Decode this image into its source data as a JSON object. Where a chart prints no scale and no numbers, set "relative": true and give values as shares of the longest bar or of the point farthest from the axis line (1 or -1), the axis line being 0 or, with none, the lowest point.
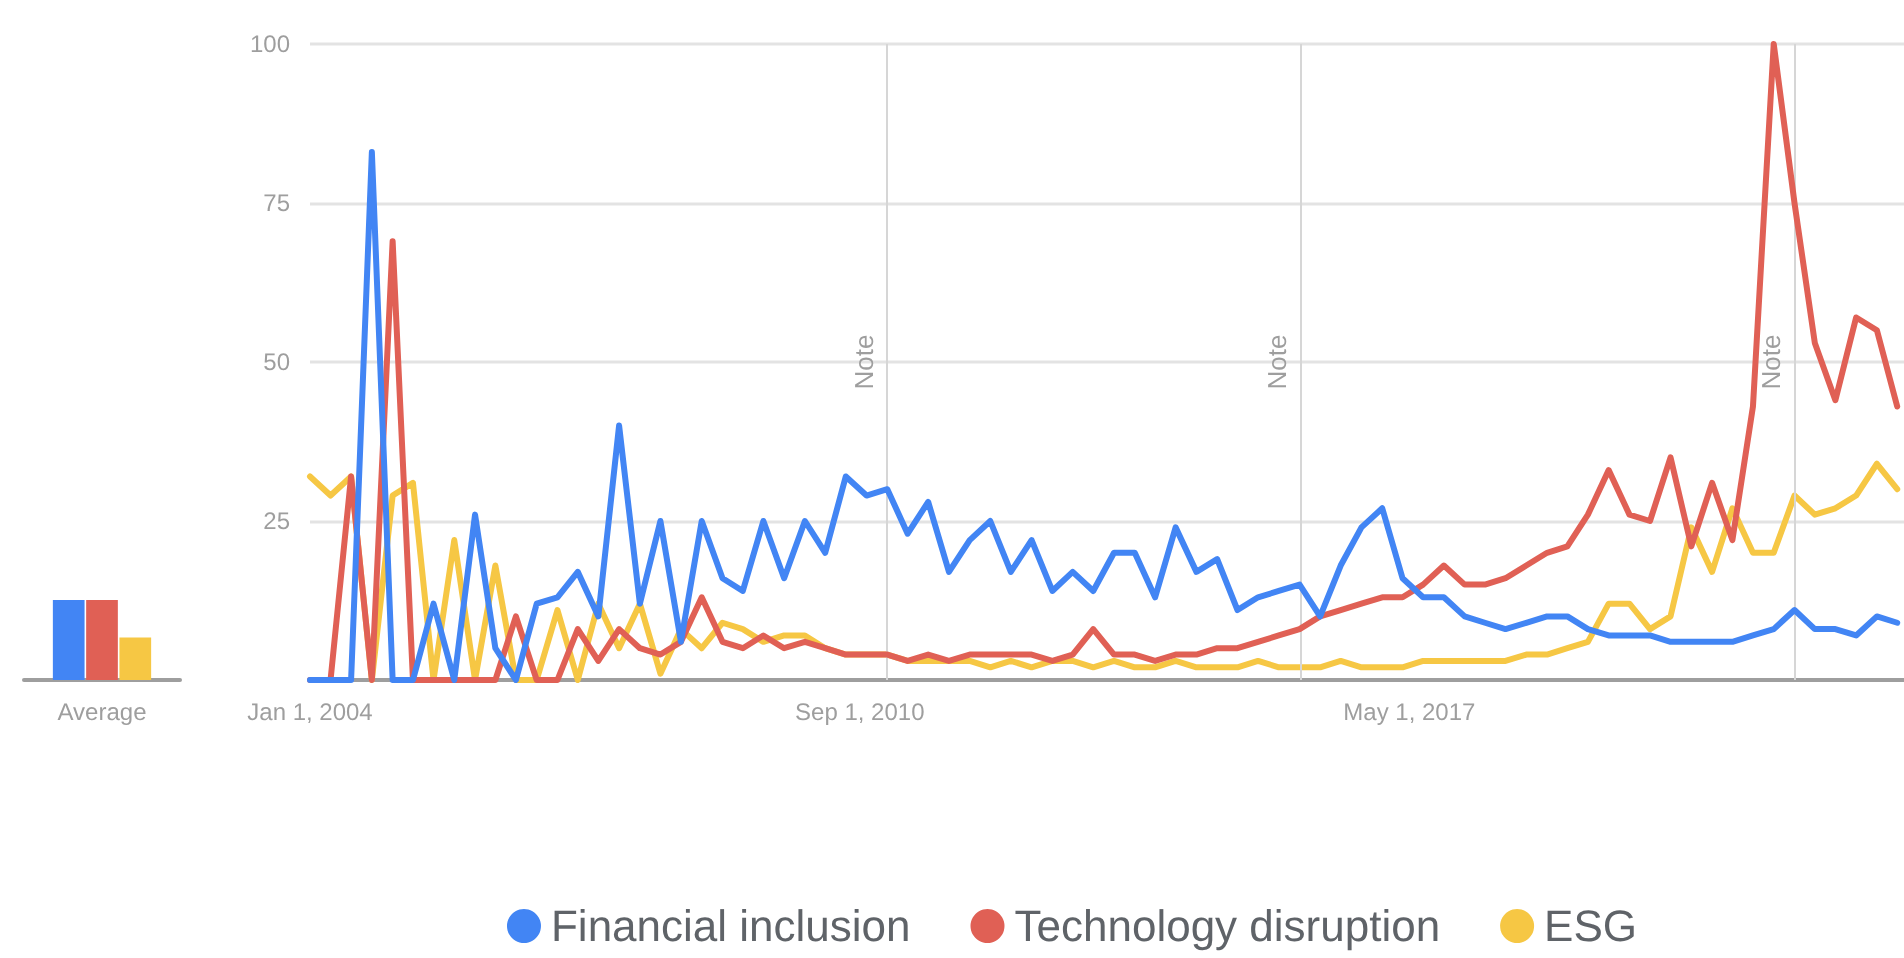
{
  "chart_data": [
    {
      "type": "bar",
      "categories": [
        "Average"
      ],
      "relative": true,
      "tick_labels": "x",
      "series": [
        {
          "color": "#4285f4",
          "values": [
            1
          ]
        },
        {
          "color": "#e06055",
          "values": [
            1
          ]
        },
        {
          "color": "#f6c744",
          "values": [
            0.53
          ]
        }
      ]
    },
    {
      "type": "line",
      "marker": "none",
      "line_style": "solid",
      "grid": "y",
      "legend": "bottom",
      "xlim": [
        "2004-01",
        "2023-05"
      ],
      "xticks": [
        {
          "value": "2004-01-01",
          "label": "Jan 1, 2004"
        },
        {
          "value": "2010-09-01",
          "label": "Sep 1, 2010"
        },
        {
          "value": "2017-05-01",
          "label": "May 1, 2017"
        }
      ],
      "ylim": [
        0,
        100
      ],
      "yticks": [
        25,
        50,
        75,
        100
      ],
      "x": [
        "2004-01",
        "2004-04",
        "2004-07",
        "2004-10",
        "2005-01",
        "2005-04",
        "2005-07",
        "2005-10",
        "2006-01",
        "2006-04",
        "2006-07",
        "2006-10",
        "2007-01",
        "2007-04",
        "2007-07",
        "2007-10",
        "2008-01",
        "2008-04",
        "2008-07",
        "2008-10",
        "2009-01",
        "2009-04",
        "2009-07",
        "2009-10",
        "2010-01",
        "2010-04",
        "2010-07",
        "2010-10",
        "2011-01",
        "2011-04",
        "2011-07",
        "2011-10",
        "2012-01",
        "2012-04",
        "2012-07",
        "2012-10",
        "2013-01",
        "2013-04",
        "2013-07",
        "2013-10",
        "2014-01",
        "2014-04",
        "2014-07",
        "2014-10",
        "2015-01",
        "2015-04",
        "2015-07",
        "2015-10",
        "2016-01",
        "2016-04",
        "2016-07",
        "2016-10",
        "2017-01",
        "2017-04",
        "2017-07",
        "2017-10",
        "2018-01",
        "2018-04",
        "2018-07",
        "2018-10",
        "2019-01",
        "2019-04",
        "2019-07",
        "2019-10",
        "2020-01",
        "2020-04",
        "2020-07",
        "2020-10",
        "2021-01",
        "2021-04",
        "2021-07",
        "2021-10",
        "2022-01",
        "2022-04",
        "2022-07",
        "2022-10",
        "2023-01",
        "2023-04"
      ],
      "series": [
        {
          "name": "Financial inclusion",
          "color": "#4285f4",
          "values": [
            0,
            0,
            0,
            83,
            0,
            0,
            12,
            0,
            26,
            5,
            0,
            12,
            13,
            17,
            10,
            40,
            12,
            25,
            6,
            25,
            16,
            14,
            25,
            16,
            25,
            20,
            32,
            29,
            30,
            23,
            28,
            17,
            22,
            25,
            17,
            22,
            14,
            17,
            14,
            20,
            20,
            13,
            24,
            17,
            19,
            11,
            13,
            14,
            15,
            10,
            18,
            24,
            27,
            16,
            13,
            13,
            10,
            9,
            8,
            9,
            10,
            10,
            8,
            7,
            7,
            7,
            6,
            6,
            6,
            6,
            7,
            8,
            11,
            8,
            8,
            7,
            10,
            9
          ]
        },
        {
          "name": "Technology disruption",
          "color": "#e06055",
          "values": [
            0,
            0,
            32,
            0,
            69,
            0,
            0,
            0,
            0,
            0,
            10,
            0,
            0,
            8,
            3,
            8,
            5,
            4,
            6,
            13,
            6,
            5,
            7,
            5,
            6,
            5,
            4,
            4,
            4,
            3,
            4,
            3,
            4,
            4,
            4,
            4,
            3,
            4,
            8,
            4,
            4,
            3,
            4,
            4,
            5,
            5,
            6,
            7,
            8,
            10,
            11,
            12,
            13,
            13,
            15,
            18,
            15,
            15,
            16,
            18,
            20,
            21,
            26,
            33,
            26,
            25,
            35,
            21,
            31,
            22,
            43,
            100,
            75,
            53,
            44,
            57,
            55,
            43
          ]
        },
        {
          "name": "ESG",
          "color": "#f6c744",
          "values": [
            32,
            29,
            32,
            0,
            29,
            31,
            0,
            22,
            0,
            18,
            0,
            0,
            11,
            0,
            12,
            5,
            12,
            1,
            8,
            5,
            9,
            8,
            6,
            7,
            7,
            5,
            4,
            4,
            4,
            3,
            3,
            3,
            3,
            2,
            3,
            2,
            3,
            3,
            2,
            3,
            2,
            2,
            3,
            2,
            2,
            2,
            3,
            2,
            2,
            2,
            3,
            2,
            2,
            2,
            3,
            3,
            3,
            3,
            3,
            4,
            4,
            5,
            6,
            12,
            12,
            8,
            10,
            24,
            17,
            27,
            20,
            20,
            29,
            26,
            27,
            29,
            34,
            30
          ]
        }
      ],
      "ref_lines": [
        {
          "axis": "x",
          "value": "2011-01",
          "label": "Note"
        },
        {
          "axis": "x",
          "value": "2016-01",
          "label": "Note"
        },
        {
          "axis": "x",
          "value": "2022-01",
          "label": "Note"
        }
      ]
    }
  ]
}
